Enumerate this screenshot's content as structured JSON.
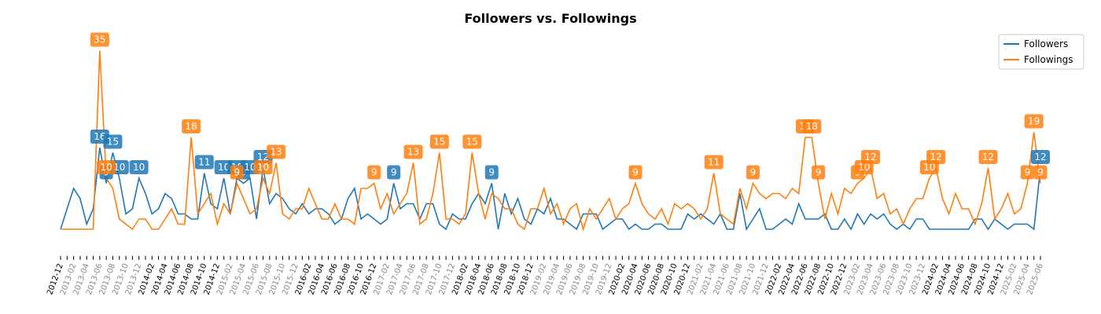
{
  "chart_data": {
    "type": "line",
    "title": "Followers vs. Followings",
    "categories": [
      "2012-12",
      null,
      "2013-02",
      null,
      "2013-04",
      null,
      "2013-06",
      null,
      "2013-08",
      null,
      "2013-10",
      null,
      "2013-12",
      null,
      "2014-02",
      null,
      "2014-04",
      null,
      "2014-06",
      null,
      "2014-08",
      null,
      "2014-10",
      null,
      "2014-12",
      null,
      "2015-02",
      null,
      "2015-04",
      null,
      "2015-06",
      null,
      "2015-08",
      null,
      "2015-10",
      null,
      "2015-12",
      null,
      "2016-02",
      null,
      "2016-04",
      null,
      "2016-06",
      null,
      "2016-08",
      null,
      "2016-10",
      null,
      "2016-12",
      null,
      "2017-02",
      null,
      "2017-04",
      null,
      "2017-06",
      null,
      "2017-08",
      null,
      "2017-10",
      null,
      "2017-12",
      null,
      "2018-02",
      null,
      "2018-04",
      null,
      "2018-06",
      null,
      "2018-08",
      null,
      "2018-10",
      null,
      "2018-12",
      null,
      "2019-02",
      null,
      "2019-04",
      null,
      "2019-06",
      null,
      "2019-08",
      null,
      "2019-10",
      null,
      "2019-12",
      null,
      "2020-02",
      null,
      "2020-04",
      null,
      "2020-06",
      null,
      "2020-08",
      null,
      "2020-10",
      null,
      "2020-12",
      null,
      "2021-02",
      null,
      "2021-04",
      null,
      "2021-06",
      null,
      "2021-08",
      null,
      "2021-10",
      null,
      "2021-12",
      null,
      "2022-02",
      null,
      "2022-04",
      null,
      "2022-06",
      null,
      "2022-08",
      null,
      "2022-10",
      null,
      "2022-12",
      null,
      "2023-02",
      null,
      "2023-04",
      null,
      "2023-06",
      null,
      "2023-08",
      null,
      "2023-10",
      null,
      "2023-12",
      null,
      "2024-02",
      null,
      "2024-04",
      null,
      "2024-06",
      null,
      "2024-08",
      null,
      "2024-10",
      null,
      "2024-12",
      null,
      "2025-02",
      null,
      "2025-04",
      null,
      "2025-06"
    ],
    "series": [
      {
        "name": "Followers",
        "color": "#1f77b4",
        "values": [
          0,
          4,
          8,
          6,
          1,
          4,
          16,
          9,
          15,
          10,
          3,
          4,
          10,
          7,
          3,
          4,
          7,
          6,
          3,
          3,
          2,
          2,
          11,
          5,
          4,
          10,
          3,
          10,
          9,
          10,
          2,
          12,
          5,
          7,
          6,
          4,
          3,
          5,
          3,
          4,
          4,
          3,
          1,
          2,
          6,
          8,
          2,
          3,
          2,
          1,
          2,
          9,
          4,
          5,
          5,
          2,
          5,
          5,
          1,
          0,
          3,
          2,
          2,
          5,
          7,
          5,
          9,
          0,
          7,
          3,
          6,
          2,
          1,
          4,
          3,
          6,
          2,
          2,
          1,
          0,
          3,
          3,
          3,
          0,
          1,
          2,
          2,
          0,
          1,
          0,
          0,
          1,
          1,
          0,
          0,
          0,
          3,
          2,
          3,
          2,
          1,
          3,
          0,
          0,
          7,
          0,
          2,
          4,
          0,
          0,
          1,
          2,
          1,
          5,
          2,
          2,
          2,
          3,
          0,
          0,
          2,
          0,
          3,
          1,
          3,
          2,
          3,
          1,
          0,
          1,
          0,
          2,
          2,
          0,
          0,
          0,
          0,
          0,
          0,
          0,
          2,
          2,
          0,
          2,
          1,
          0,
          1,
          1,
          1,
          0,
          12
        ]
      },
      {
        "name": "Followings",
        "color": "#ff7f0e",
        "values": [
          0,
          0,
          0,
          0,
          0,
          0,
          35,
          10,
          8,
          2,
          1,
          0,
          2,
          2,
          0,
          0,
          2,
          4,
          1,
          1,
          18,
          3,
          5,
          7,
          1,
          5,
          3,
          9,
          6,
          3,
          4,
          10,
          7,
          13,
          3,
          2,
          4,
          4,
          8,
          5,
          2,
          2,
          5,
          2,
          2,
          1,
          8,
          8,
          9,
          4,
          7,
          3,
          5,
          7,
          13,
          1,
          2,
          7,
          15,
          2,
          2,
          1,
          3,
          15,
          7,
          2,
          7,
          6,
          4,
          4,
          1,
          0,
          4,
          4,
          8,
          3,
          5,
          1,
          4,
          5,
          0,
          4,
          2,
          4,
          6,
          2,
          4,
          5,
          9,
          5,
          3,
          2,
          4,
          1,
          5,
          4,
          5,
          4,
          2,
          4,
          11,
          3,
          2,
          1,
          8,
          4,
          9,
          7,
          6,
          7,
          7,
          6,
          8,
          7,
          18,
          18,
          9,
          2,
          7,
          3,
          8,
          7,
          9,
          10,
          12,
          6,
          7,
          3,
          4,
          1,
          4,
          6,
          6,
          10,
          12,
          6,
          3,
          7,
          4,
          4,
          1,
          5,
          12,
          2,
          4,
          7,
          3,
          4,
          9,
          19,
          9
        ]
      }
    ],
    "ylim": [
      -2,
      38
    ],
    "label_threshold": 9,
    "legend": "upper right"
  }
}
